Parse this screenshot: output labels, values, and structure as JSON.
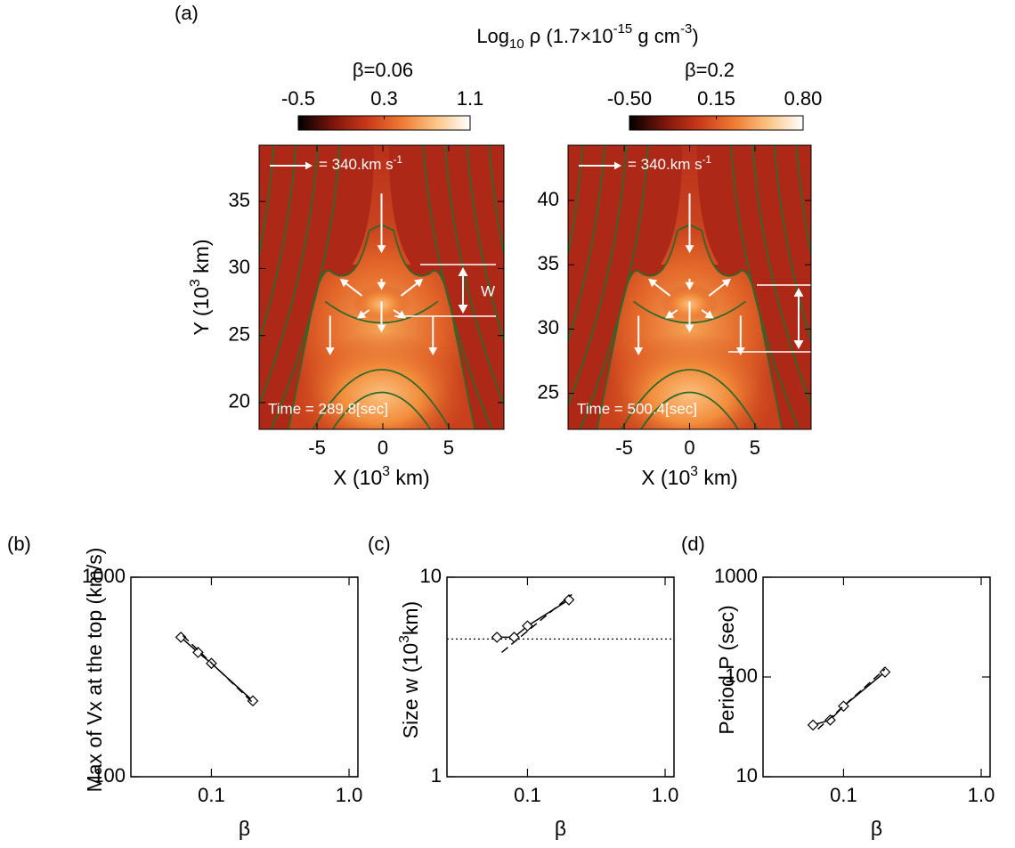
{
  "chart_data": [
    {
      "type": "heatmap",
      "panel_label": "(a)",
      "colorbar_title": [
        {
          "text": "Log"
        },
        {
          "text": "10",
          "sub": true
        },
        {
          "text": " ρ (1.7×10"
        },
        {
          "text": "-15",
          "sup": true
        },
        {
          "text": " g cm"
        },
        {
          "text": "-3",
          "sup": true
        },
        {
          "text": ")"
        }
      ],
      "subtitle": "β=0.06",
      "colorbar": {
        "lim": [
          -0.5,
          1.1
        ],
        "ticks": [
          -0.5,
          0.3,
          1.1
        ],
        "colors": [
          "#000000",
          "#7a150b",
          "#c9381a",
          "#ee7a32",
          "#fbc485",
          "#ffffff"
        ]
      },
      "xlim": [
        -9.4,
        9.2
      ],
      "ylim": [
        18,
        39.2
      ],
      "xticks": [
        -5,
        0,
        5
      ],
      "yticks": [
        20,
        25,
        30,
        35
      ],
      "x_label": [
        {
          "text": "X (10"
        },
        {
          "text": "3",
          "sup": true
        },
        {
          "text": " km)"
        }
      ],
      "y_label": [
        {
          "text": "Y (10"
        },
        {
          "text": "3",
          "sup": true
        },
        {
          "text": " km)"
        }
      ],
      "velocity_label": [
        {
          "text": "= 340.km s"
        },
        {
          "text": "-1",
          "sup": true
        }
      ],
      "width_label": "W",
      "time_label": "Time = 289.8[sec]"
    },
    {
      "type": "heatmap",
      "subtitle": "β=0.2",
      "colorbar": {
        "lim": [
          -0.5,
          0.8
        ],
        "ticks": [
          {
            "value": -0.5,
            "label": "-0.50"
          },
          0.15,
          {
            "value": 0.8,
            "label": "0.80"
          }
        ],
        "colors": [
          "#000000",
          "#7a150b",
          "#c9381a",
          "#ee7a32",
          "#fbc485",
          "#ffffff"
        ]
      },
      "xlim": [
        -9.3,
        9.3
      ],
      "ylim": [
        22.2,
        44.3
      ],
      "xticks": [
        -5,
        0,
        5
      ],
      "yticks": [
        25,
        30,
        35,
        40
      ],
      "x_label": [
        {
          "text": "X (10"
        },
        {
          "text": "3",
          "sup": true
        },
        {
          "text": " km)"
        }
      ],
      "velocity_label": [
        {
          "text": "= 340.km s"
        },
        {
          "text": "-1",
          "sup": true
        }
      ],
      "width_label": "W",
      "time_label": "Time = 500.4[sec]"
    },
    {
      "type": "scatter",
      "panel_label": "(b)",
      "xscale": "log",
      "yscale": "log",
      "xlim": [
        0.026,
        1.16
      ],
      "ylim": [
        100,
        1000
      ],
      "xticks": [
        0.1,
        {
          "value": 1,
          "label": "1.0"
        }
      ],
      "yticks": [
        100,
        1000
      ],
      "x_label": "β",
      "y_label": "Max of Vx at the top (km/s)",
      "series": [
        {
          "color": "#000000",
          "line": "solid",
          "marker": "diamond",
          "x": [
            0.06,
            0.08,
            0.1,
            0.2
          ],
          "values": [
            500,
            420,
            370,
            240
          ]
        },
        {
          "color": "#000000",
          "line": "dashed",
          "marker": "none",
          "x": [
            0.062,
            0.2
          ],
          "values": [
            510,
            235
          ]
        }
      ]
    },
    {
      "type": "scatter",
      "panel_label": "(c)",
      "xscale": "log",
      "yscale": "log",
      "xlim": [
        0.026,
        1.16
      ],
      "ylim": [
        1,
        10
      ],
      "xticks": [
        0.1,
        {
          "value": 1,
          "label": "1.0"
        }
      ],
      "yticks": [
        1,
        10
      ],
      "x_label": "β",
      "y_label": [
        {
          "text": "Size w (10"
        },
        {
          "text": "3",
          "sup": true
        },
        {
          "text": "km)"
        }
      ],
      "reference_line": {
        "value": 4.9,
        "style": "dotted"
      },
      "series": [
        {
          "color": "#000000",
          "line": "solid",
          "marker": "diamond",
          "x": [
            0.06,
            0.08,
            0.1,
            0.2
          ],
          "values": [
            5.0,
            5.0,
            5.7,
            7.7
          ]
        },
        {
          "color": "#000000",
          "line": "dashed",
          "marker": "none",
          "x": [
            0.065,
            0.21
          ],
          "values": [
            4.2,
            8.2
          ]
        }
      ]
    },
    {
      "type": "scatter",
      "panel_label": "(d)",
      "xscale": "log",
      "yscale": "log",
      "xlim": [
        0.026,
        1.16
      ],
      "ylim": [
        10,
        1000
      ],
      "xticks": [
        0.1,
        {
          "value": 1,
          "label": "1.0"
        }
      ],
      "yticks": [
        10,
        100,
        1000
      ],
      "x_label": "β",
      "y_label": "Period P (sec)",
      "series": [
        {
          "color": "#000000",
          "line": "solid",
          "marker": "diamond",
          "x": [
            0.06,
            0.08,
            0.1,
            0.2
          ],
          "values": [
            33,
            37,
            51,
            112
          ]
        },
        {
          "color": "#000000",
          "line": "dashed",
          "marker": "none",
          "x": [
            0.065,
            0.2
          ],
          "values": [
            30,
            120
          ]
        }
      ]
    }
  ]
}
